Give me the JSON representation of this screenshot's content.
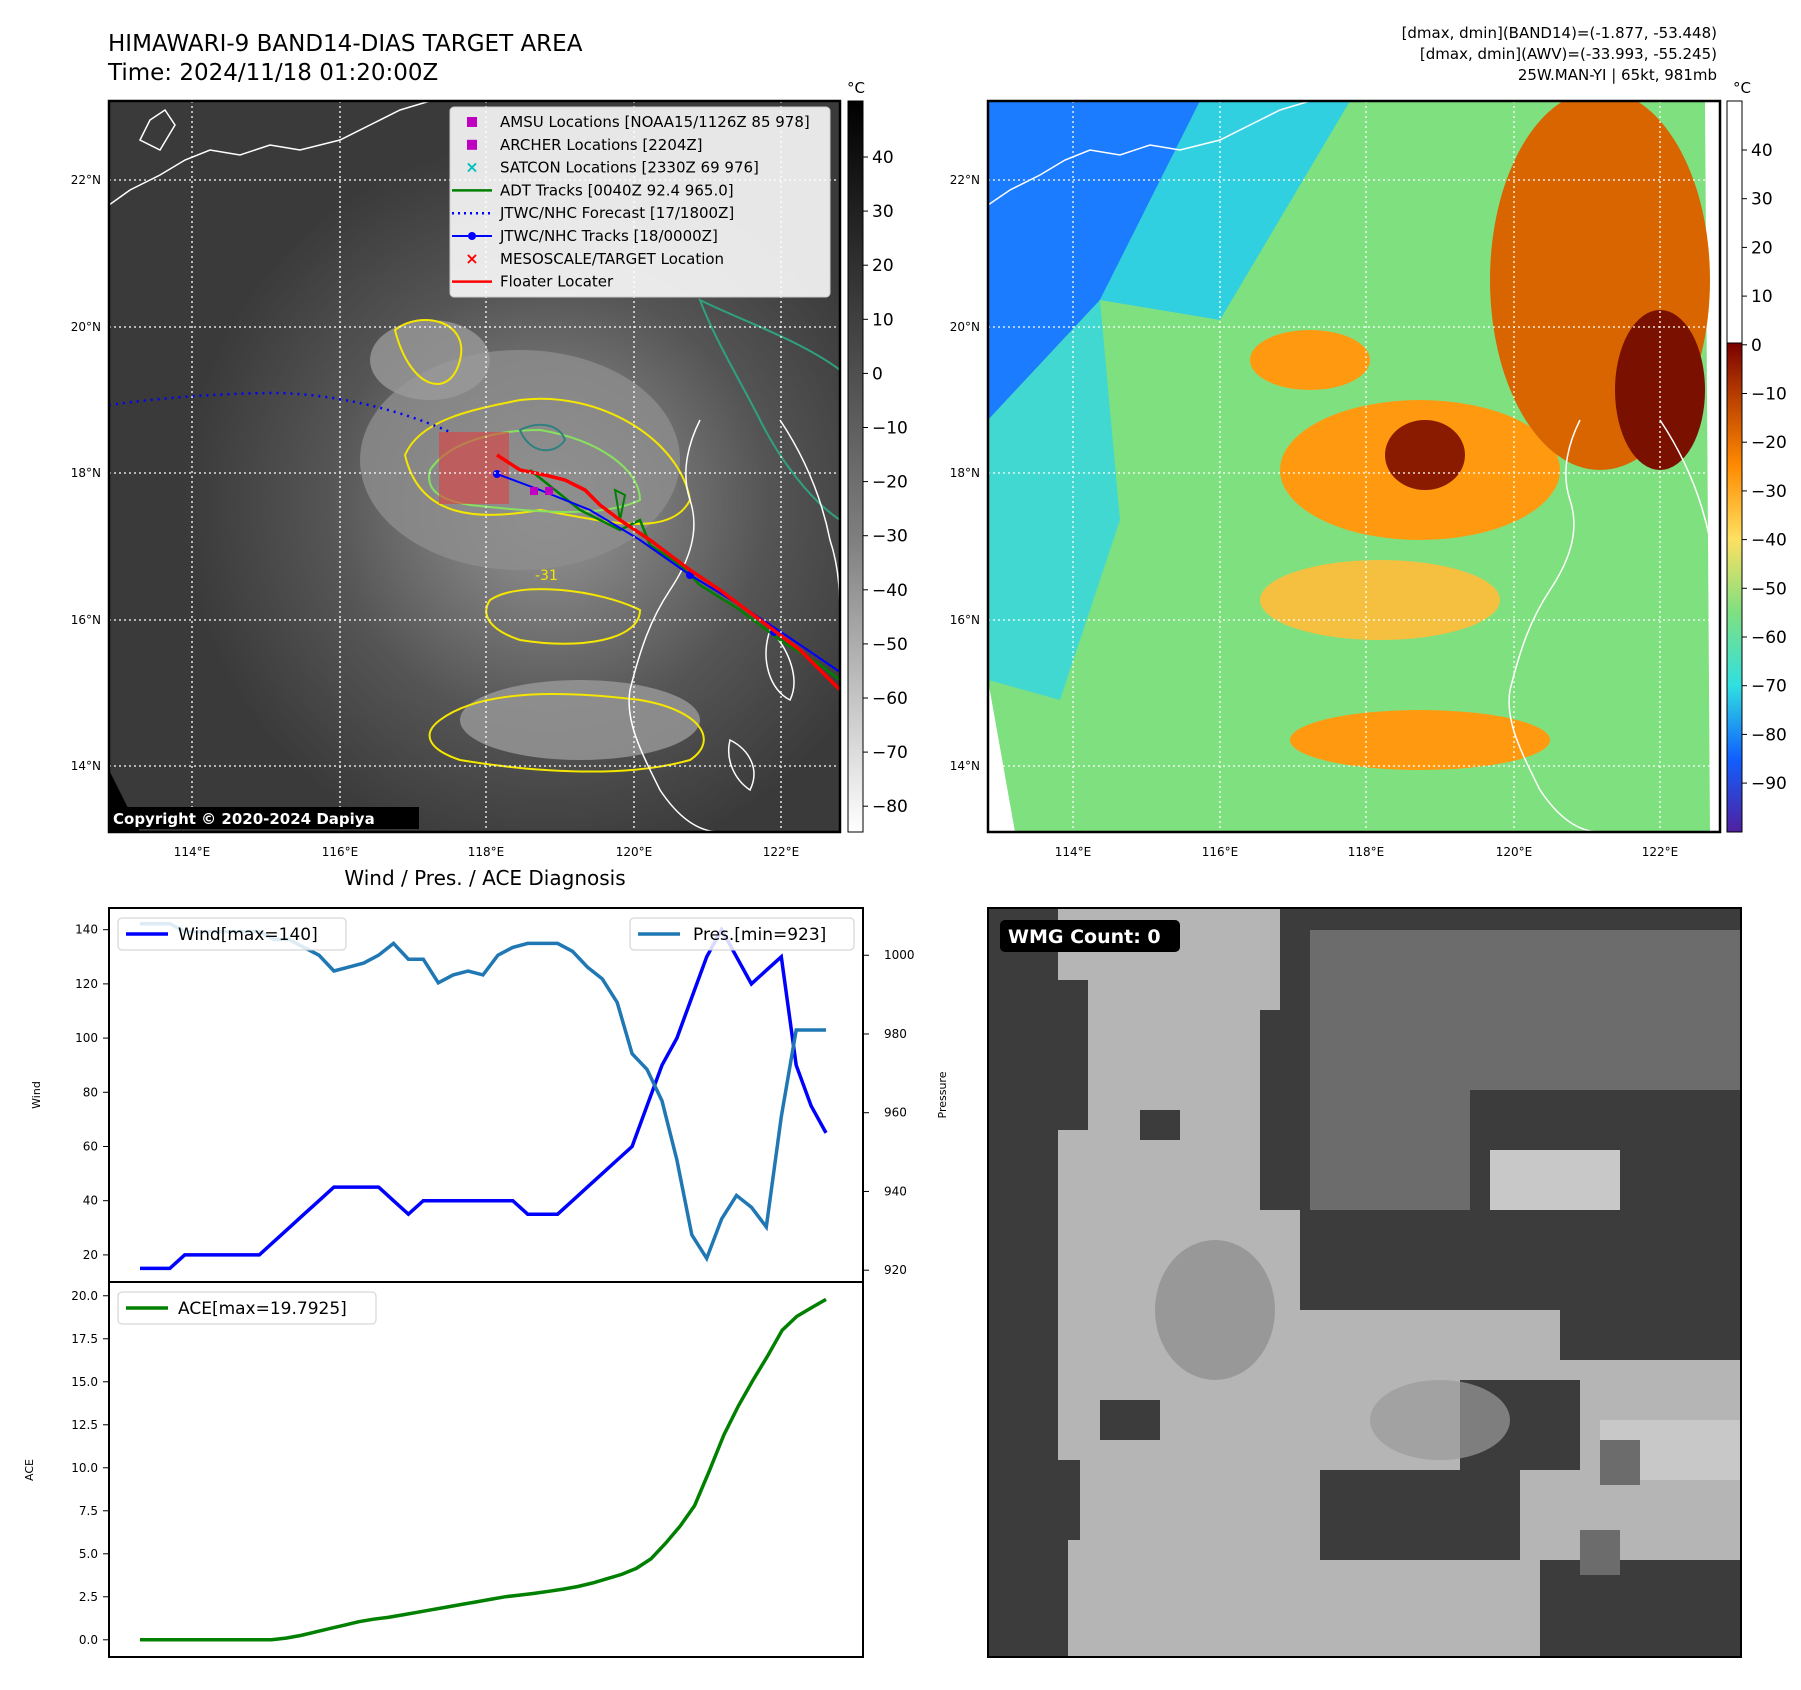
{
  "header": {
    "title_line1": "HIMAWARI-9 BAND14-DIAS TARGET AREA",
    "title_line2": "Time: 2024/11/18 01:20:00Z",
    "info_line1": "[dmax, dmin](BAND14)=(-1.877, -53.448)",
    "info_line2": "[dmax, dmin](AWV)=(-33.993, -55.245)",
    "info_line3": "25W.MAN-YI | 65kt, 981mb"
  },
  "map": {
    "lon_labels": [
      "114°E",
      "116°E",
      "118°E",
      "120°E",
      "122°E"
    ],
    "lat_labels": [
      "22°N",
      "20°N",
      "18°N",
      "16°N",
      "14°N"
    ],
    "copyright": "Copyright © 2020-2024 Dapiya",
    "contour_label": "-31",
    "legend": [
      {
        "label": "AMSU Locations [NOAA15/1126Z 85 978]",
        "color": "#c000c0",
        "marker": "square"
      },
      {
        "label": "ARCHER Locations [2204Z]",
        "color": "#c000c0",
        "marker": "square"
      },
      {
        "label": "SATCON Locations [2330Z 69 976]",
        "color": "#00c0c0",
        "marker": "x"
      },
      {
        "label": "ADT Tracks [0040Z 92.4 965.0]",
        "color": "#008000",
        "marker": "line"
      },
      {
        "label": "JTWC/NHC Forecast [17/1800Z]",
        "color": "#0000ff",
        "marker": "dotted"
      },
      {
        "label": "JTWC/NHC Tracks [18/0000Z]",
        "color": "#0000ff",
        "marker": "line-dot"
      },
      {
        "label": "MESOSCALE/TARGET Location",
        "color": "#ff0000",
        "marker": "x"
      },
      {
        "label": "Floater Locater",
        "color": "#ff0000",
        "marker": "line"
      }
    ]
  },
  "colorbar1": {
    "unit": "°C",
    "ticks": [
      "40",
      "30",
      "20",
      "10",
      "0",
      "−10",
      "−20",
      "−30",
      "−40",
      "−50",
      "−60",
      "−70",
      "−80"
    ]
  },
  "colorbar2": {
    "unit": "°C",
    "ticks": [
      "40",
      "30",
      "20",
      "10",
      "0",
      "−10",
      "−20",
      "−30",
      "−40",
      "−50",
      "−60",
      "−70",
      "−80",
      "−90"
    ]
  },
  "wmg": {
    "label": "WMG Count: 0"
  },
  "colors": {
    "wind": "#0000ff",
    "pressure": "#1f77b4",
    "ace": "#008000"
  },
  "chart_data": [
    {
      "type": "line",
      "title": "Wind / Pres. / ACE Diagnosis",
      "ylabel": "Wind",
      "ylabel_right": "Pressure",
      "ylim": [
        10,
        148
      ],
      "ylim_right": [
        917,
        1012
      ],
      "yticks": [
        20,
        40,
        60,
        80,
        100,
        120,
        140
      ],
      "yticks_right": [
        920,
        940,
        960,
        980,
        1000
      ],
      "series": [
        {
          "name": "Wind[max=140]",
          "axis": "left",
          "values": [
            15,
            15,
            15,
            20,
            20,
            20,
            20,
            20,
            20,
            25,
            30,
            35,
            40,
            45,
            45,
            45,
            45,
            40,
            35,
            40,
            40,
            40,
            40,
            40,
            40,
            40,
            35,
            35,
            35,
            40,
            45,
            50,
            55,
            60,
            75,
            90,
            100,
            115,
            130,
            140,
            130,
            120,
            125,
            130,
            90,
            75,
            65
          ]
        },
        {
          "name": "Pres.[min=923]",
          "axis": "right",
          "values": [
            1008,
            1008,
            1008,
            1006,
            1006,
            1006,
            1006,
            1006,
            1006,
            1004,
            1004,
            1002,
            1000,
            996,
            997,
            998,
            1000,
            1003,
            999,
            999,
            993,
            995,
            996,
            995,
            1000,
            1002,
            1003,
            1003,
            1003,
            1001,
            997,
            994,
            988,
            975,
            971,
            963,
            948,
            929,
            923,
            933,
            939,
            936,
            931,
            959,
            981,
            981,
            981
          ]
        }
      ]
    },
    {
      "type": "line",
      "ylabel": "ACE",
      "ylim": [
        -1.0,
        20.8
      ],
      "yticks": [
        0.0,
        2.5,
        5.0,
        7.5,
        10.0,
        12.5,
        15.0,
        17.5,
        20.0
      ],
      "series": [
        {
          "name": "ACE[max=19.7925]",
          "values": [
            0,
            0,
            0,
            0,
            0,
            0,
            0,
            0,
            0,
            0,
            0.1,
            0.25,
            0.45,
            0.65,
            0.85,
            1.05,
            1.2,
            1.3,
            1.45,
            1.6,
            1.75,
            1.9,
            2.05,
            2.2,
            2.35,
            2.5,
            2.6,
            2.7,
            2.82,
            2.95,
            3.1,
            3.3,
            3.55,
            3.8,
            4.15,
            4.7,
            5.6,
            6.6,
            7.8,
            9.8,
            11.9,
            13.6,
            15.1,
            16.5,
            18.0,
            18.8,
            19.3,
            19.79
          ]
        }
      ]
    }
  ]
}
